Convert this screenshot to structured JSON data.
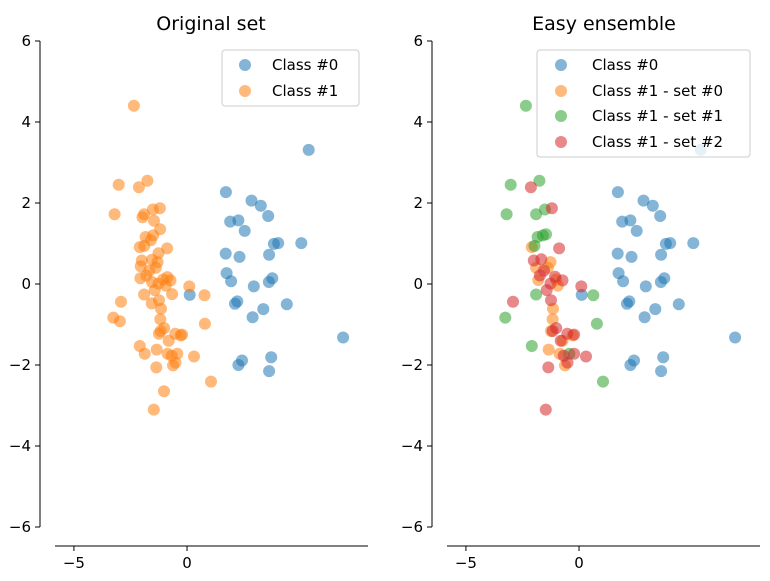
{
  "chart_data": [
    {
      "type": "scatter",
      "title": "Original set",
      "xlabel": "",
      "ylabel": "",
      "xlim": [
        -6.5,
        8.0
      ],
      "ylim": [
        -6,
        6
      ],
      "xticks": [
        -5,
        0
      ],
      "yticks": [
        -6,
        -4,
        -2,
        0,
        2,
        4,
        6
      ],
      "xtick_labels": [
        "−5",
        "0"
      ],
      "ytick_labels": [
        "−6",
        "−4",
        "−2",
        "0",
        "2",
        "4",
        "6"
      ],
      "grid": false,
      "legend_placement": "top-right",
      "series": [
        {
          "name": "Class #0",
          "color": "#1f77b4",
          "points": [
            [
              5.38,
              3.31
            ],
            [
              1.72,
              2.27
            ],
            [
              2.85,
              2.06
            ],
            [
              3.26,
              1.93
            ],
            [
              2.27,
              1.57
            ],
            [
              1.91,
              1.54
            ],
            [
              3.59,
              1.68
            ],
            [
              2.55,
              1.31
            ],
            [
              3.84,
              0.99
            ],
            [
              4.03,
              1.01
            ],
            [
              5.05,
              1.01
            ],
            [
              1.71,
              0.75
            ],
            [
              2.32,
              0.67
            ],
            [
              3.63,
              0.72
            ],
            [
              1.75,
              0.27
            ],
            [
              1.95,
              0.07
            ],
            [
              3.62,
              0.05
            ],
            [
              3.77,
              0.14
            ],
            [
              2.95,
              -0.06
            ],
            [
              0.12,
              -0.27
            ],
            [
              2.22,
              -0.43
            ],
            [
              2.12,
              -0.49
            ],
            [
              4.41,
              -0.5
            ],
            [
              3.37,
              -0.62
            ],
            [
              2.9,
              -0.82
            ],
            [
              6.9,
              -1.32
            ],
            [
              2.43,
              -1.89
            ],
            [
              2.27,
              -2.0
            ],
            [
              3.72,
              -1.81
            ],
            [
              3.63,
              -2.15
            ]
          ]
        },
        {
          "name": "Class #1",
          "color": "#ff7f0e",
          "points": [
            [
              -2.35,
              4.4
            ],
            [
              -2.13,
              2.39
            ],
            [
              -3.02,
              2.45
            ],
            [
              -1.75,
              2.55
            ],
            [
              -3.2,
              1.72
            ],
            [
              -1.51,
              1.84
            ],
            [
              -1.2,
              1.87
            ],
            [
              -1.46,
              1.56
            ],
            [
              -1.9,
              1.72
            ],
            [
              -1.97,
              1.65
            ],
            [
              -1.19,
              1.35
            ],
            [
              -1.83,
              1.16
            ],
            [
              -1.6,
              1.08
            ],
            [
              -1.5,
              1.2
            ],
            [
              -2.09,
              0.91
            ],
            [
              -1.89,
              0.94
            ],
            [
              -0.88,
              0.88
            ],
            [
              -1.26,
              0.76
            ],
            [
              -2.0,
              0.58
            ],
            [
              -1.55,
              0.6
            ],
            [
              -1.3,
              0.54
            ],
            [
              -2.05,
              0.44
            ],
            [
              -1.67,
              0.33
            ],
            [
              -1.8,
              0.21
            ],
            [
              -2.06,
              0.14
            ],
            [
              -1.38,
              0.4
            ],
            [
              -0.87,
              0.17
            ],
            [
              -1.06,
              0.11
            ],
            [
              -0.73,
              0.09
            ],
            [
              -1.26,
              0.01
            ],
            [
              -1.55,
              0.05
            ],
            [
              -1.43,
              -0.15
            ],
            [
              -0.94,
              -0.04
            ],
            [
              -1.9,
              -0.26
            ],
            [
              -0.66,
              -0.25
            ],
            [
              0.1,
              -0.06
            ],
            [
              0.77,
              -0.28
            ],
            [
              -1.24,
              -0.4
            ],
            [
              -1.56,
              -0.48
            ],
            [
              -1.15,
              -0.61
            ],
            [
              -2.92,
              -0.44
            ],
            [
              -3.26,
              -0.83
            ],
            [
              -2.97,
              -0.92
            ],
            [
              -1.18,
              -0.87
            ],
            [
              -1.01,
              -1.09
            ],
            [
              -1.17,
              -1.16
            ],
            [
              -1.24,
              -1.23
            ],
            [
              0.79,
              -0.98
            ],
            [
              -0.52,
              -1.23
            ],
            [
              -0.22,
              -1.25
            ],
            [
              -0.28,
              -1.27
            ],
            [
              -0.81,
              -1.4
            ],
            [
              -2.09,
              -1.53
            ],
            [
              -1.87,
              -1.72
            ],
            [
              -1.34,
              -1.62
            ],
            [
              -0.86,
              -1.72
            ],
            [
              -0.43,
              -1.72
            ],
            [
              -0.68,
              -1.77
            ],
            [
              0.31,
              -1.79
            ],
            [
              -0.51,
              -1.94
            ],
            [
              -0.62,
              -2.01
            ],
            [
              -1.36,
              -2.06
            ],
            [
              1.06,
              -2.41
            ],
            [
              -1.02,
              -2.65
            ],
            [
              -1.47,
              -3.1
            ]
          ]
        }
      ]
    },
    {
      "type": "scatter",
      "title": "Easy ensemble",
      "xlabel": "",
      "ylabel": "",
      "xlim": [
        -6.5,
        8.0
      ],
      "ylim": [
        -6,
        6
      ],
      "xticks": [
        -5,
        0
      ],
      "yticks": [
        -6,
        -4,
        -2,
        0,
        2,
        4,
        6
      ],
      "xtick_labels": [
        "−5",
        "0"
      ],
      "ytick_labels": [
        "−6",
        "−4",
        "−2",
        "0",
        "2",
        "4",
        "6"
      ],
      "grid": false,
      "legend_placement": "top-right",
      "series": [
        {
          "name": "Class #0",
          "color": "#1f77b4",
          "points": [
            [
              5.38,
              3.31
            ],
            [
              1.72,
              2.27
            ],
            [
              2.85,
              2.06
            ],
            [
              3.26,
              1.93
            ],
            [
              2.27,
              1.57
            ],
            [
              1.91,
              1.54
            ],
            [
              3.59,
              1.68
            ],
            [
              2.55,
              1.31
            ],
            [
              3.84,
              0.99
            ],
            [
              4.03,
              1.01
            ],
            [
              5.05,
              1.01
            ],
            [
              1.71,
              0.75
            ],
            [
              2.32,
              0.67
            ],
            [
              3.63,
              0.72
            ],
            [
              1.75,
              0.27
            ],
            [
              1.95,
              0.07
            ],
            [
              3.62,
              0.05
            ],
            [
              3.77,
              0.14
            ],
            [
              2.95,
              -0.06
            ],
            [
              0.12,
              -0.27
            ],
            [
              2.22,
              -0.43
            ],
            [
              2.12,
              -0.49
            ],
            [
              4.41,
              -0.5
            ],
            [
              3.37,
              -0.62
            ],
            [
              2.9,
              -0.82
            ],
            [
              6.9,
              -1.32
            ],
            [
              2.43,
              -1.89
            ],
            [
              2.27,
              -2.0
            ],
            [
              3.72,
              -1.81
            ],
            [
              3.63,
              -2.15
            ]
          ]
        },
        {
          "name": "Class #1 - set #0",
          "color": "#ff7f0e",
          "points": [
            [
              -2.09,
              0.91
            ],
            [
              -1.38,
              0.4
            ],
            [
              -1.26,
              0.54
            ],
            [
              -1.9,
              0.4
            ],
            [
              -1.8,
              0.1
            ],
            [
              -0.94,
              -0.04
            ],
            [
              -1.15,
              -0.61
            ],
            [
              -1.17,
              -0.87
            ],
            [
              -1.24,
              -1.16
            ],
            [
              -0.73,
              -1.4
            ],
            [
              -1.34,
              -1.62
            ],
            [
              -0.86,
              -1.72
            ],
            [
              -0.28,
              -1.27
            ],
            [
              -0.62,
              -2.01
            ],
            [
              -1.02,
              0.11
            ]
          ]
        },
        {
          "name": "Class #1 - set #1",
          "color": "#2ca02c",
          "points": [
            [
              -2.35,
              4.4
            ],
            [
              -3.02,
              2.45
            ],
            [
              -1.75,
              2.55
            ],
            [
              -3.2,
              1.72
            ],
            [
              -1.9,
              1.72
            ],
            [
              -1.51,
              1.84
            ],
            [
              -1.6,
              1.2
            ],
            [
              -1.97,
              0.94
            ],
            [
              -1.83,
              1.16
            ],
            [
              -1.46,
              1.23
            ],
            [
              -1.9,
              -0.26
            ],
            [
              -3.26,
              -0.83
            ],
            [
              -2.09,
              -1.53
            ],
            [
              0.79,
              -0.98
            ],
            [
              0.63,
              -0.28
            ],
            [
              1.06,
              -2.41
            ],
            [
              -0.43,
              -1.72
            ]
          ]
        },
        {
          "name": "Class #1 - set #2",
          "color": "#d62728",
          "points": [
            [
              -2.13,
              2.39
            ],
            [
              -1.2,
              1.87
            ],
            [
              -0.88,
              0.88
            ],
            [
              -1.67,
              0.61
            ],
            [
              -2.0,
              0.58
            ],
            [
              -1.55,
              0.33
            ],
            [
              -1.73,
              0.21
            ],
            [
              -0.73,
              0.09
            ],
            [
              -1.26,
              0.01
            ],
            [
              -1.06,
              0.18
            ],
            [
              -1.43,
              -0.15
            ],
            [
              0.1,
              -0.06
            ],
            [
              -1.24,
              -0.4
            ],
            [
              -2.92,
              -0.44
            ],
            [
              -1.01,
              -1.09
            ],
            [
              -1.17,
              -1.16
            ],
            [
              -0.81,
              -1.4
            ],
            [
              -0.52,
              -1.23
            ],
            [
              -0.22,
              -1.25
            ],
            [
              0.31,
              -1.79
            ],
            [
              -0.51,
              -1.94
            ],
            [
              -0.68,
              -1.77
            ],
            [
              -1.36,
              -2.06
            ],
            [
              -0.22,
              -1.72
            ],
            [
              -1.47,
              -3.1
            ]
          ]
        }
      ]
    }
  ]
}
